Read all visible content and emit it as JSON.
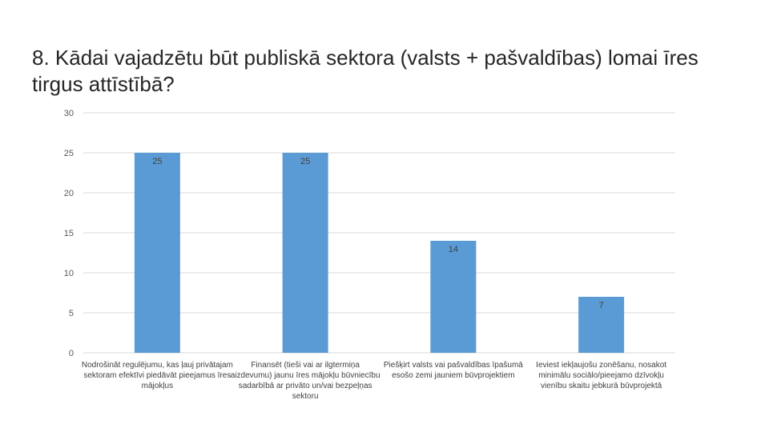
{
  "title": "8. Kādai vajadzētu būt publiskā sektora (valsts + pašvaldības) lomai īres tirgus attīstībā?",
  "chart_data": {
    "type": "bar",
    "categories": [
      "Nodrošināt regulējumu, kas ļauj privātajam sektoram efektīvi piedāvāt pieejamus īres mājokļus",
      "Finansēt (tieši vai ar ilgtermiņa aizdevumu) jaunu īres mājokļu būvniecību sadarbībā ar privāto un/vai bezpeļņas sektoru",
      "Piešķirt valsts vai pašvaldības īpašumā esošo zemi jauniem būvprojektiem",
      "Ieviest iekļaujošu zonēšanu, nosakot minimālu sociālo/pieejamo dzīvokļu vienību skaitu jebkurā būvprojektā"
    ],
    "values": [
      25,
      25,
      14,
      7
    ],
    "ylim": [
      0,
      30
    ],
    "yticks": [
      0,
      5,
      10,
      15,
      20,
      25,
      30
    ],
    "bar_color": "#5B9BD5",
    "grid_color": "#D9D9D9",
    "grid": true,
    "legend": false
  }
}
